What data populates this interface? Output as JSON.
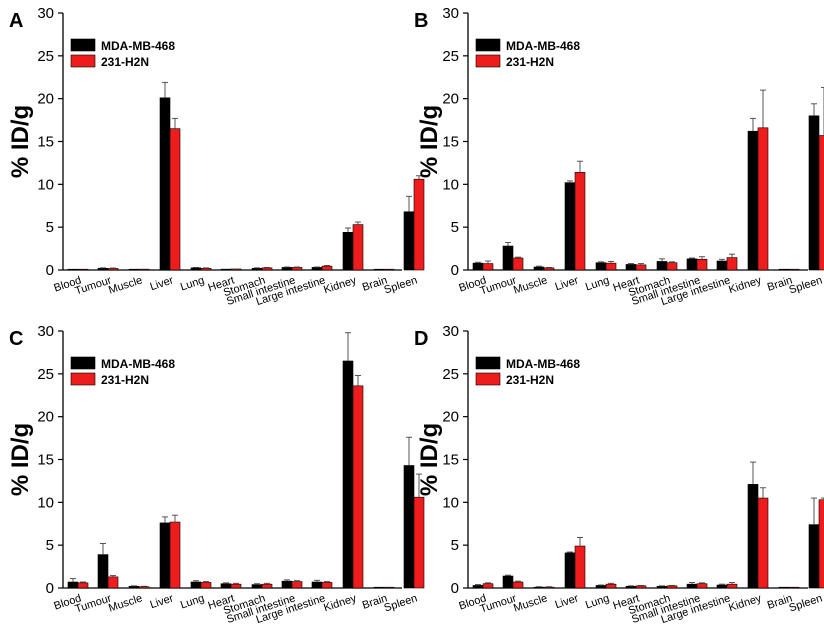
{
  "chart_data": [
    {
      "panel": "A",
      "type": "bar",
      "ylabel": "% ID/g",
      "ylim": [
        0,
        30
      ],
      "yticks": [
        0,
        5,
        10,
        15,
        20,
        25,
        30
      ],
      "categories": [
        "Blood",
        "Tumour",
        "Muscle",
        "Liver",
        "Lung",
        "Heart",
        "Stomach",
        "Small intestine",
        "Large intestine",
        "Kidney",
        "Brain",
        "Spleen"
      ],
      "legend_position": "top-left",
      "series": [
        {
          "name": "MDA-MB-468",
          "color": "#000000",
          "values": [
            0.05,
            0.2,
            0.08,
            20.1,
            0.25,
            0.1,
            0.2,
            0.3,
            0.3,
            4.4,
            0.05,
            6.8
          ],
          "errors": [
            0.02,
            0.05,
            0.02,
            1.8,
            0.05,
            0.03,
            0.05,
            0.05,
            0.05,
            0.5,
            0.02,
            1.8
          ]
        },
        {
          "name": "231-H2N",
          "color": "#ee1c1c",
          "values": [
            0.08,
            0.18,
            0.1,
            16.5,
            0.2,
            0.12,
            0.25,
            0.3,
            0.45,
            5.3,
            0.05,
            10.6
          ],
          "errors": [
            0.02,
            0.05,
            0.02,
            1.2,
            0.05,
            0.03,
            0.05,
            0.05,
            0.08,
            0.3,
            0.02,
            0.4
          ]
        }
      ]
    },
    {
      "panel": "B",
      "type": "bar",
      "ylabel": "% ID/g",
      "ylim": [
        0,
        30
      ],
      "yticks": [
        0,
        5,
        10,
        15,
        20,
        25,
        30
      ],
      "categories": [
        "Blood",
        "Tumour",
        "Muscle",
        "Liver",
        "Lung",
        "Heart",
        "Stomach",
        "Small intestine",
        "Large intestine",
        "Kidney",
        "Brain",
        "Spleen"
      ],
      "legend_position": "top-left",
      "series": [
        {
          "name": "MDA-MB-468",
          "color": "#000000",
          "values": [
            0.8,
            2.8,
            0.35,
            10.2,
            0.85,
            0.65,
            1.0,
            1.3,
            1.05,
            16.2,
            0.05,
            18.0
          ],
          "errors": [
            0.1,
            0.4,
            0.1,
            0.2,
            0.1,
            0.1,
            0.3,
            0.1,
            0.2,
            1.5,
            0.02,
            1.4
          ]
        },
        {
          "name": "231-H2N",
          "color": "#ee1c1c",
          "values": [
            0.75,
            1.4,
            0.25,
            11.4,
            0.8,
            0.6,
            0.85,
            1.25,
            1.45,
            16.6,
            0.05,
            15.7
          ],
          "errors": [
            0.3,
            0.1,
            0.05,
            1.3,
            0.2,
            0.15,
            0.1,
            0.3,
            0.4,
            4.4,
            0.02,
            5.6
          ]
        }
      ]
    },
    {
      "panel": "C",
      "type": "bar",
      "ylabel": "% ID/g",
      "ylim": [
        0,
        30
      ],
      "yticks": [
        0,
        5,
        10,
        15,
        20,
        25,
        30
      ],
      "categories": [
        "Blood",
        "Tumour",
        "Muscle",
        "Liver",
        "Lung",
        "Heart",
        "Stomach",
        "Small intestine",
        "Large intestine",
        "Kidney",
        "Brain",
        "Spleen"
      ],
      "legend_position": "top-left",
      "series": [
        {
          "name": "MDA-MB-468",
          "color": "#000000",
          "values": [
            0.7,
            3.9,
            0.2,
            7.6,
            0.7,
            0.5,
            0.4,
            0.8,
            0.7,
            26.5,
            0.05,
            14.3
          ],
          "errors": [
            0.4,
            1.3,
            0.05,
            0.7,
            0.15,
            0.1,
            0.1,
            0.15,
            0.2,
            3.3,
            0.02,
            3.3
          ]
        },
        {
          "name": "231-H2N",
          "color": "#ee1c1c",
          "values": [
            0.6,
            1.3,
            0.15,
            7.7,
            0.65,
            0.45,
            0.45,
            0.75,
            0.65,
            23.6,
            0.05,
            10.6
          ],
          "errors": [
            0.1,
            0.15,
            0.05,
            0.8,
            0.1,
            0.1,
            0.1,
            0.1,
            0.1,
            1.2,
            0.02,
            2.7
          ]
        }
      ]
    },
    {
      "panel": "D",
      "type": "bar",
      "ylabel": "% ID/g",
      "ylim": [
        0,
        30
      ],
      "yticks": [
        0,
        5,
        10,
        15,
        20,
        25,
        30
      ],
      "categories": [
        "Blood",
        "Tumour",
        "Muscle",
        "Liver",
        "Lung",
        "Heart",
        "Stomach",
        "Small intestine",
        "Large intestine",
        "Kidney",
        "Brain",
        "Spleen"
      ],
      "legend_position": "top-left",
      "series": [
        {
          "name": "MDA-MB-468",
          "color": "#000000",
          "values": [
            0.3,
            1.4,
            0.1,
            4.1,
            0.3,
            0.2,
            0.2,
            0.45,
            0.35,
            12.1,
            0.05,
            7.4
          ],
          "errors": [
            0.1,
            0.1,
            0.05,
            0.1,
            0.05,
            0.05,
            0.05,
            0.2,
            0.1,
            2.6,
            0.02,
            3.1
          ]
        },
        {
          "name": "231-H2N",
          "color": "#ee1c1c",
          "values": [
            0.5,
            0.7,
            0.1,
            4.9,
            0.45,
            0.25,
            0.25,
            0.5,
            0.45,
            10.5,
            0.05,
            10.3
          ],
          "errors": [
            0.1,
            0.1,
            0.05,
            1.0,
            0.1,
            0.05,
            0.05,
            0.1,
            0.2,
            1.2,
            0.02,
            0.2
          ]
        }
      ]
    }
  ]
}
